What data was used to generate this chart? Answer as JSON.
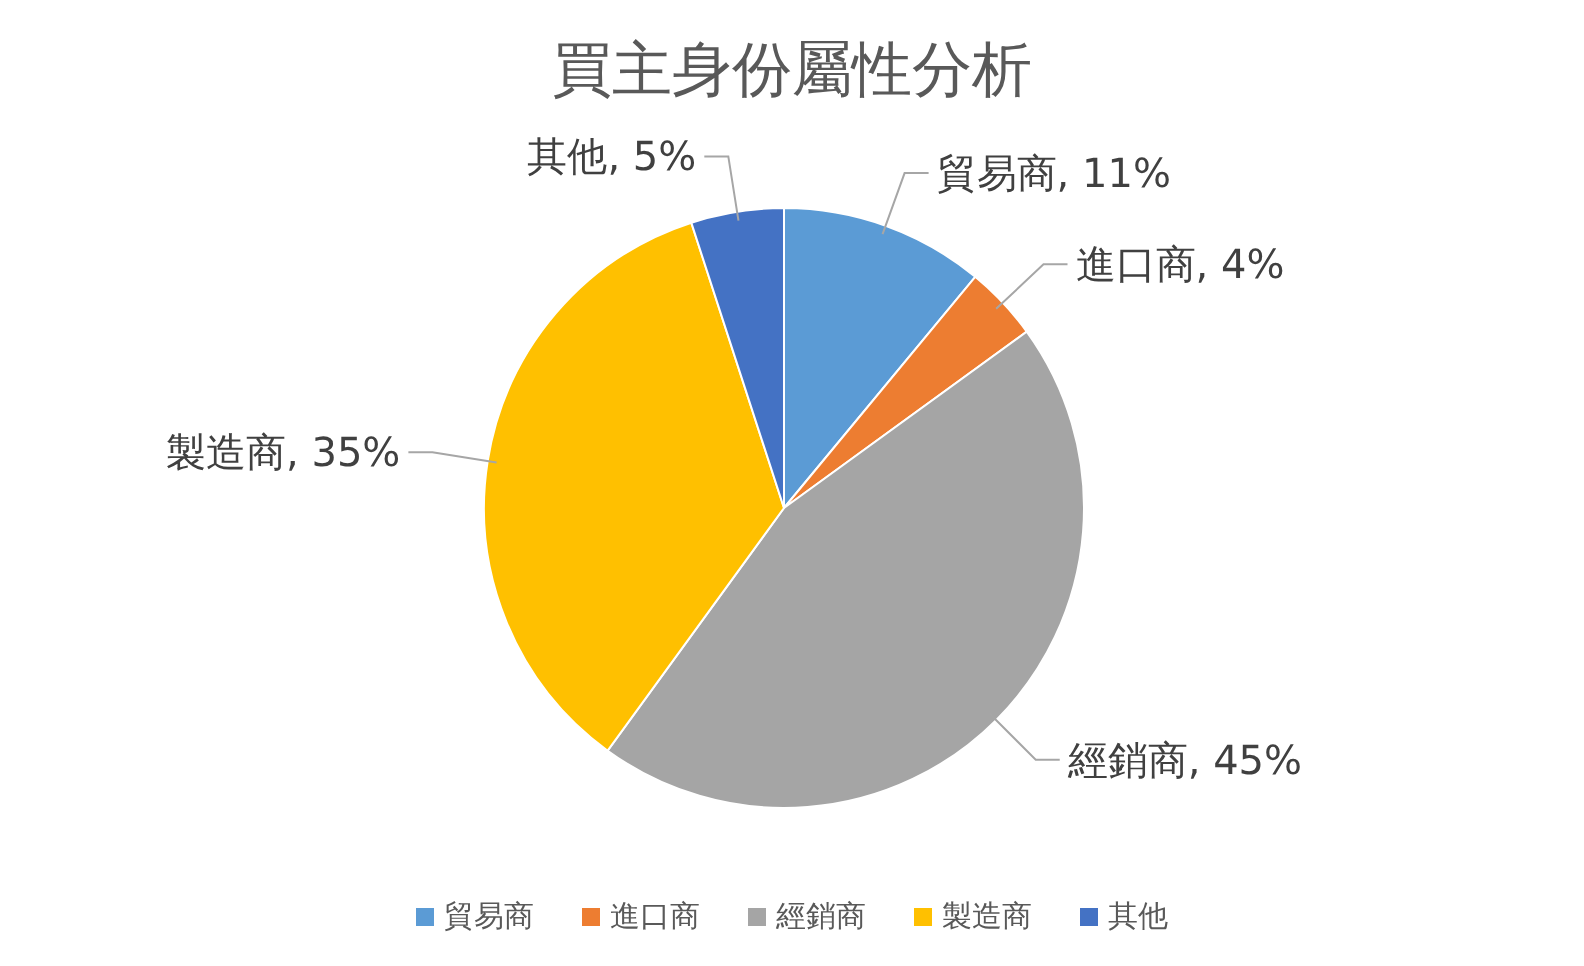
{
  "chart_data": {
    "type": "pie",
    "title": "買主身份屬性分析",
    "categories": [
      "貿易商",
      "進口商",
      "經銷商",
      "製造商",
      "其他"
    ],
    "values": [
      11,
      4,
      45,
      35,
      5
    ],
    "colors": [
      "#5b9bd5",
      "#ed7d31",
      "#a5a5a5",
      "#ffc000",
      "#4472c4"
    ],
    "value_labels": [
      "貿易商, 11%",
      "進口商, 4%",
      "經銷商, 45%",
      "製造商, 35%",
      "其他, 5%"
    ],
    "legend": "bottom"
  }
}
